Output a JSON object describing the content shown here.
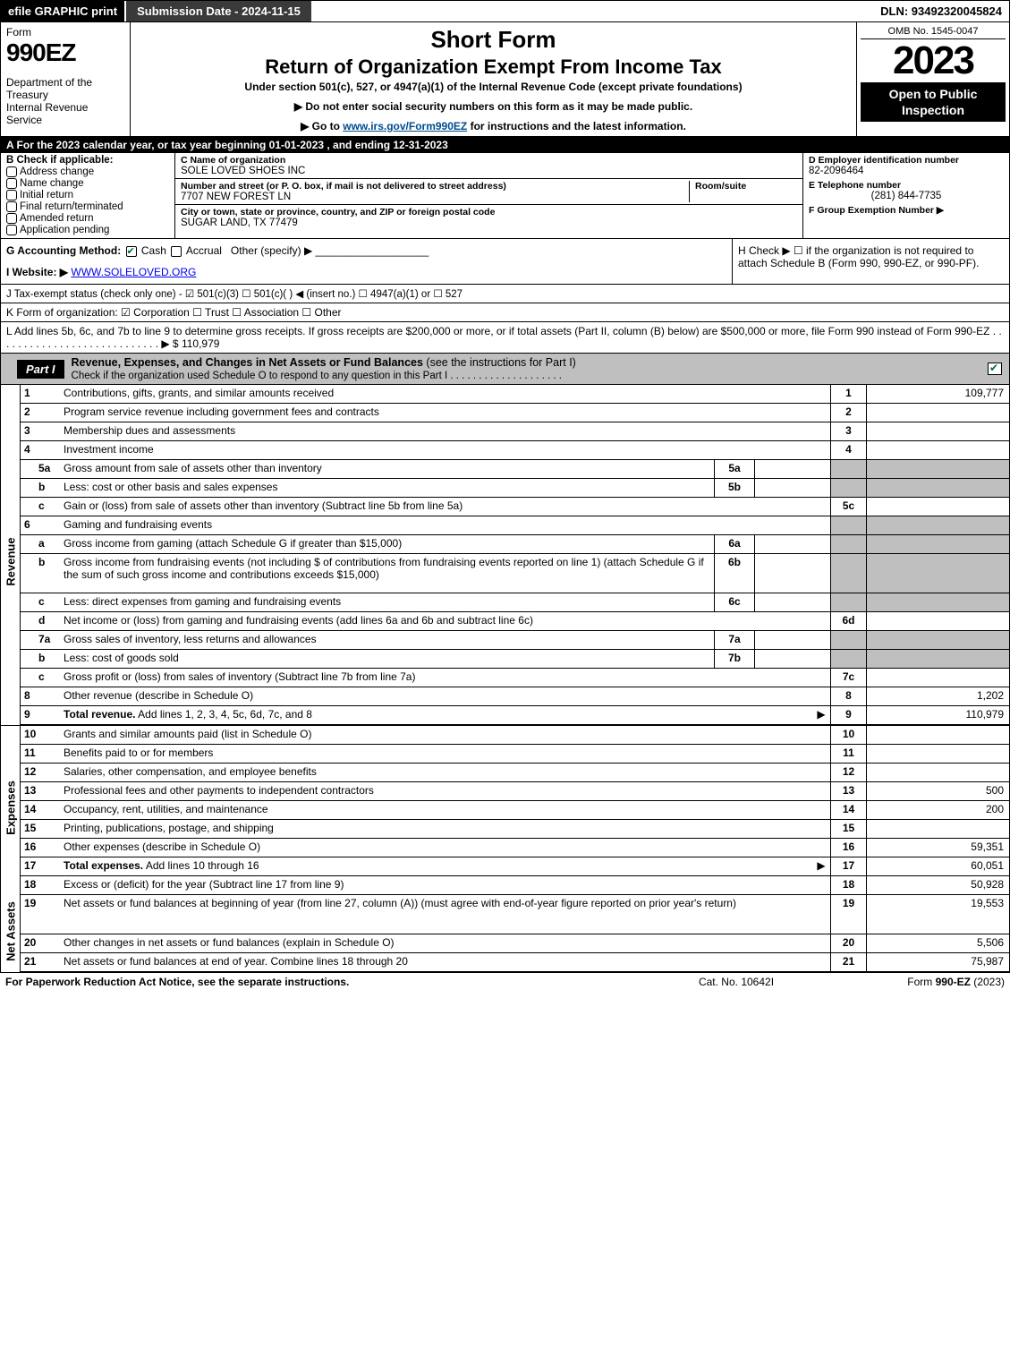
{
  "topbar": {
    "efile": "efile GRAPHIC print",
    "sub_date": "Submission Date - 2024-11-15",
    "dln": "DLN: 93492320045824"
  },
  "header": {
    "form_word": "Form",
    "form_num": "990EZ",
    "dept": "Department of the Treasury\nInternal Revenue Service",
    "short_form": "Short Form",
    "title2": "Return of Organization Exempt From Income Tax",
    "subtitle": "Under section 501(c), 527, or 4947(a)(1) of the Internal Revenue Code (except private foundations)",
    "instr1": "▶ Do not enter social security numbers on this form as it may be made public.",
    "instr2_pre": "▶ Go to ",
    "instr2_link": "www.irs.gov/Form990EZ",
    "instr2_post": " for instructions and the latest information.",
    "omb": "OMB No. 1545-0047",
    "year": "2023",
    "inspect": "Open to Public Inspection"
  },
  "row_a": "A  For the 2023 calendar year, or tax year beginning 01-01-2023 , and ending 12-31-2023",
  "col_b": {
    "title": "B  Check if applicable:",
    "items": [
      "Address change",
      "Name change",
      "Initial return",
      "Final return/terminated",
      "Amended return",
      "Application pending"
    ]
  },
  "col_c": {
    "name_label": "C Name of organization",
    "name": "SOLE LOVED SHOES INC",
    "addr_label": "Number and street (or P. O. box, if mail is not delivered to street address)",
    "addr": "7707 NEW FOREST LN",
    "room_label": "Room/suite",
    "room": "",
    "city_label": "City or town, state or province, country, and ZIP or foreign postal code",
    "city": "SUGAR LAND, TX  77479"
  },
  "col_d": {
    "ein_label": "D Employer identification number",
    "ein": "82-2096464",
    "tel_label": "E Telephone number",
    "tel": "(281) 844-7735",
    "grp_label": "F Group Exemption Number   ▶",
    "grp": ""
  },
  "line_g": {
    "label": "G Accounting Method:",
    "opts": "☑ Cash  ☐ Accrual  Other (specify) ▶",
    "h": "H   Check ▶  ☐ if the organization is not required to attach Schedule B (Form 990, 990-EZ, or 990-PF)."
  },
  "line_i": {
    "label": "I Website: ▶",
    "val": "WWW.SOLELOVED.ORG"
  },
  "line_j": "J Tax-exempt status (check only one) - ☑ 501(c)(3) ☐ 501(c)(  ) ◀ (insert no.) ☐ 4947(a)(1) or ☐ 527",
  "line_k": "K Form of organization:  ☑ Corporation  ☐ Trust  ☐ Association  ☐ Other",
  "line_l": {
    "text": "L Add lines 5b, 6c, and 7b to line 9 to determine gross receipts. If gross receipts are $200,000 or more, or if total assets (Part II, column (B) below) are $500,000 or more, file Form 990 instead of Form 990-EZ  .  .  .  .  .  .  .  .  .  .  .  .  .  .  .  .  .  .  .  .  .  .  .  .  .  .  .  . ▶ $ ",
    "amt": "110,979"
  },
  "part1": {
    "tab": "Part I",
    "title_b": "Revenue, Expenses, and Changes in Net Assets or Fund Balances",
    "title_rest": " (see the instructions for Part I)",
    "sub": "Check if the organization used Schedule O to respond to any question in this Part I .  .  .  .  .  .  .  .  .  .  .  .  .  .  .  .  .  .  .  ."
  },
  "side_rev": "Revenue",
  "side_exp": "Expenses",
  "side_net": "Net Assets",
  "rows_rev": [
    {
      "n": "1",
      "desc": "Contributions, gifts, grants, and similar amounts received",
      "ln": "1",
      "amt": "109,777"
    },
    {
      "n": "2",
      "desc": "Program service revenue including government fees and contracts",
      "ln": "2",
      "amt": ""
    },
    {
      "n": "3",
      "desc": "Membership dues and assessments",
      "ln": "3",
      "amt": ""
    },
    {
      "n": "4",
      "desc": "Investment income",
      "ln": "4",
      "amt": ""
    },
    {
      "n": "5a",
      "sub": true,
      "desc": "Gross amount from sale of assets other than inventory",
      "inbox": "5a",
      "inval": "",
      "grey_out": true
    },
    {
      "n": "b",
      "sub": true,
      "desc": "Less: cost or other basis and sales expenses",
      "inbox": "5b",
      "inval": "",
      "grey_out": true
    },
    {
      "n": "c",
      "sub": true,
      "desc": "Gain or (loss) from sale of assets other than inventory (Subtract line 5b from line 5a)",
      "ln": "5c",
      "amt": ""
    },
    {
      "n": "6",
      "desc": "Gaming and fundraising events",
      "grey_out": true,
      "no_ln": true
    },
    {
      "n": "a",
      "sub": true,
      "desc": "Gross income from gaming (attach Schedule G if greater than $15,000)",
      "inbox": "6a",
      "inval": "",
      "grey_out": true
    },
    {
      "n": "b",
      "sub": true,
      "desc": "Gross income from fundraising events (not including $                   of contributions from fundraising events reported on line 1) (attach Schedule G if the sum of such gross income and contributions exceeds $15,000)",
      "inbox": "6b",
      "inval": "",
      "grey_out": true,
      "tall": true
    },
    {
      "n": "c",
      "sub": true,
      "desc": "Less: direct expenses from gaming and fundraising events",
      "inbox": "6c",
      "inval": "",
      "grey_out": true
    },
    {
      "n": "d",
      "sub": true,
      "desc": "Net income or (loss) from gaming and fundraising events (add lines 6a and 6b and subtract line 6c)",
      "ln": "6d",
      "amt": ""
    },
    {
      "n": "7a",
      "sub": true,
      "desc": "Gross sales of inventory, less returns and allowances",
      "inbox": "7a",
      "inval": "",
      "grey_out": true
    },
    {
      "n": "b",
      "sub": true,
      "desc": "Less: cost of goods sold",
      "inbox": "7b",
      "inval": "",
      "grey_out": true
    },
    {
      "n": "c",
      "sub": true,
      "desc": "Gross profit or (loss) from sales of inventory (Subtract line 7b from line 7a)",
      "ln": "7c",
      "amt": ""
    },
    {
      "n": "8",
      "desc": "Other revenue (describe in Schedule O)",
      "ln": "8",
      "amt": "1,202"
    },
    {
      "n": "9",
      "desc_b": "Total revenue.",
      "desc": " Add lines 1, 2, 3, 4, 5c, 6d, 7c, and 8",
      "ln": "9",
      "amt": "110,979",
      "arrow": true
    }
  ],
  "rows_exp": [
    {
      "n": "10",
      "desc": "Grants and similar amounts paid (list in Schedule O)",
      "ln": "10",
      "amt": ""
    },
    {
      "n": "11",
      "desc": "Benefits paid to or for members",
      "ln": "11",
      "amt": ""
    },
    {
      "n": "12",
      "desc": "Salaries, other compensation, and employee benefits",
      "ln": "12",
      "amt": ""
    },
    {
      "n": "13",
      "desc": "Professional fees and other payments to independent contractors",
      "ln": "13",
      "amt": "500"
    },
    {
      "n": "14",
      "desc": "Occupancy, rent, utilities, and maintenance",
      "ln": "14",
      "amt": "200"
    },
    {
      "n": "15",
      "desc": "Printing, publications, postage, and shipping",
      "ln": "15",
      "amt": ""
    },
    {
      "n": "16",
      "desc": "Other expenses (describe in Schedule O)",
      "ln": "16",
      "amt": "59,351"
    },
    {
      "n": "17",
      "desc_b": "Total expenses.",
      "desc": " Add lines 10 through 16",
      "ln": "17",
      "amt": "60,051",
      "arrow": true
    }
  ],
  "rows_net": [
    {
      "n": "18",
      "desc": "Excess or (deficit) for the year (Subtract line 17 from line 9)",
      "ln": "18",
      "amt": "50,928"
    },
    {
      "n": "19",
      "desc": "Net assets or fund balances at beginning of year (from line 27, column (A)) (must agree with end-of-year figure reported on prior year's return)",
      "ln": "19",
      "amt": "19,553",
      "tall": true,
      "grey_top": true
    },
    {
      "n": "20",
      "desc": "Other changes in net assets or fund balances (explain in Schedule O)",
      "ln": "20",
      "amt": "5,506"
    },
    {
      "n": "21",
      "desc": "Net assets or fund balances at end of year. Combine lines 18 through 20",
      "ln": "21",
      "amt": "75,987"
    }
  ],
  "footer": {
    "l": "For Paperwork Reduction Act Notice, see the separate instructions.",
    "c": "Cat. No. 10642I",
    "r_pre": "Form ",
    "r_b": "990-EZ",
    "r_post": " (2023)"
  }
}
